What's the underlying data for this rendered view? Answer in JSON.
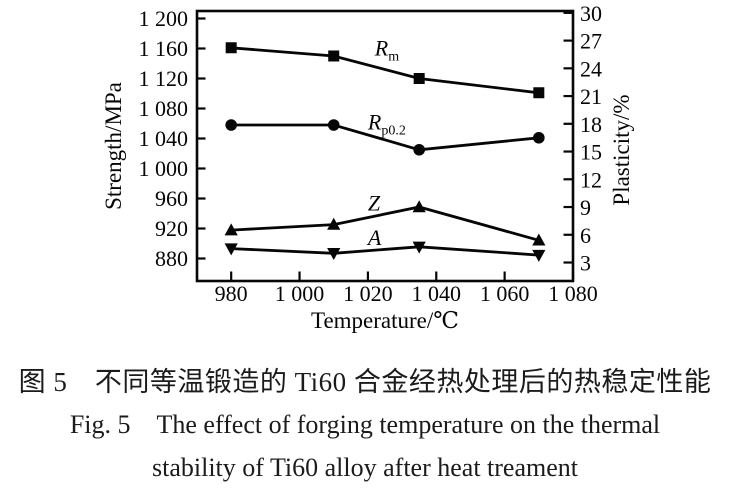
{
  "figure_caption": {
    "zh": "图 5　不同等温锻造的 Ti60 合金经热处理后的热稳定性能",
    "en_line1": "Fig. 5　The effect of forging temperature on the thermal",
    "en_line2": "stability of Ti60 alloy after heat treament"
  },
  "chart_data": {
    "type": "line",
    "title": "",
    "xlabel": "Temperature/℃",
    "ylabel_left": "Strength/MPa",
    "ylabel_right": "Plasticity/%",
    "x": [
      980,
      1010,
      1035,
      1070
    ],
    "xlim": [
      970,
      1080
    ],
    "x_ticks": [
      980,
      1000,
      1020,
      1040,
      1060,
      1080
    ],
    "x_tick_labels": [
      "980",
      "1 000",
      "1 020",
      "1 040",
      "1 060",
      "1 080"
    ],
    "ylim_left": [
      850,
      1210
    ],
    "y_ticks_left": [
      880,
      920,
      960,
      1000,
      1040,
      1080,
      1120,
      1160,
      1200
    ],
    "y_tick_labels_left": [
      "880",
      "920",
      "960",
      "1 000",
      "1 040",
      "1 080",
      "1 120",
      "1 160",
      "1 200"
    ],
    "ylim_right": [
      1.0,
      30.2
    ],
    "y_ticks_right": [
      3,
      6,
      9,
      12,
      15,
      18,
      21,
      24,
      27,
      30
    ],
    "y_tick_labels_right": [
      "3",
      "6",
      "9",
      "12",
      "15",
      "18",
      "21",
      "24",
      "27",
      "30"
    ],
    "grid": false,
    "legend": "inline-labels",
    "series": [
      {
        "key": "Rm",
        "label_main": "R",
        "label_sub": "m",
        "axis": "left",
        "marker": "square",
        "values": [
          1161,
          1150,
          1120,
          1101
        ],
        "label_anchor": {
          "x": 1022,
          "y": 1151
        }
      },
      {
        "key": "Rp02",
        "label_main": "R",
        "label_sub": "p0.2",
        "axis": "left",
        "marker": "circle",
        "values": [
          1058,
          1058,
          1025,
          1041
        ],
        "label_anchor": {
          "x": 1020,
          "y": 1052
        }
      },
      {
        "key": "Z",
        "label_main": "Z",
        "label_sub": "",
        "axis": "right",
        "marker": "triangle-up",
        "values": [
          6.5,
          7.1,
          9.0,
          5.4
        ],
        "label_anchor": {
          "x": 1020,
          "y": 8.6
        }
      },
      {
        "key": "A",
        "label_main": "A",
        "label_sub": "",
        "axis": "right",
        "marker": "triangle-down",
        "values": [
          4.5,
          4.0,
          4.7,
          3.8
        ],
        "label_anchor": {
          "x": 1020,
          "y": 4.9
        }
      }
    ],
    "ink_color": "#060606",
    "background": "#ffffff"
  }
}
